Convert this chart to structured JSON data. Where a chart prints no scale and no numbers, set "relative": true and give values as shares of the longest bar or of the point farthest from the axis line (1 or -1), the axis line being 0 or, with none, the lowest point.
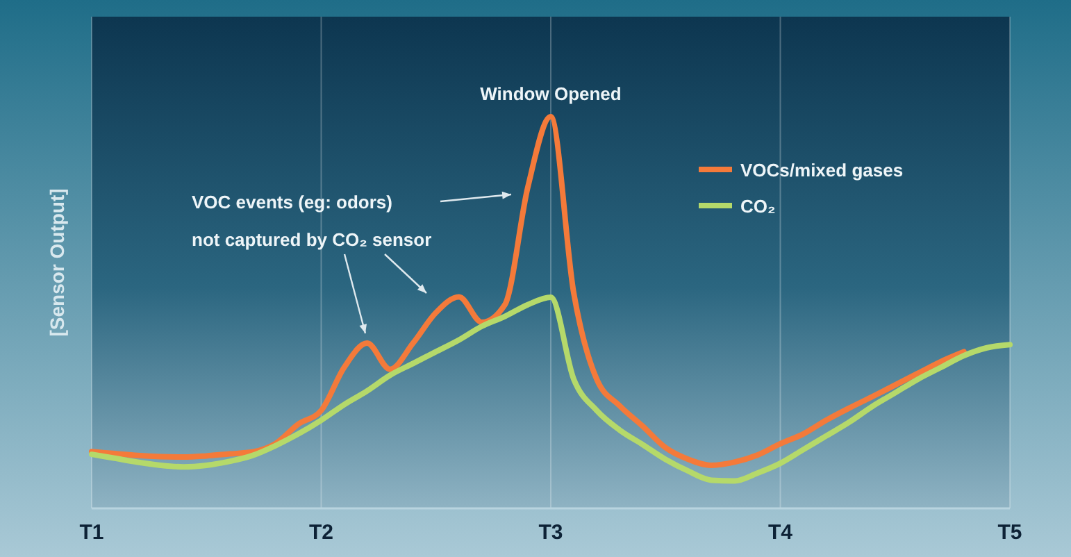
{
  "chart_data": {
    "type": "line",
    "relative": true,
    "ylabel": "[Sensor Output]",
    "categories": [
      "T1",
      null,
      null,
      null,
      null,
      null,
      null,
      null,
      null,
      null,
      "T2",
      null,
      null,
      null,
      null,
      null,
      null,
      null,
      null,
      null,
      "T3",
      null,
      null,
      null,
      null,
      null,
      null,
      null,
      null,
      null,
      "T4",
      null,
      null,
      null,
      null,
      null,
      null,
      null,
      null,
      null,
      "T5"
    ],
    "grid": "x",
    "legend": "top right",
    "marker": "none",
    "line_style": "solid",
    "annotations": [
      "Window Opened",
      "VOC events (eg: odors)\nnot captured by CO₂ sensor"
    ],
    "series": [
      {
        "name": "VOCs/mixed gases",
        "color": "#f47a3a",
        "values": [
          0.145,
          0.14,
          0.135,
          0.132,
          0.131,
          0.134,
          0.139,
          0.144,
          0.165,
          0.215,
          0.25,
          0.36,
          0.422,
          0.355,
          0.422,
          0.5,
          0.54,
          0.475,
          0.52,
          0.82,
          1,
          0.55,
          0.33,
          0.262,
          0.21,
          0.155,
          0.125,
          0.11,
          0.118,
          0.136,
          0.165,
          0.19,
          0.225,
          0.256,
          0.285,
          0.315,
          0.345,
          0.375,
          0.4,
          null,
          null
        ]
      },
      {
        "name": "CO₂",
        "color": "#b5d96a",
        "values": [
          0.138,
          0.128,
          0.118,
          0.11,
          0.106,
          0.11,
          0.12,
          0.135,
          0.16,
          0.19,
          0.225,
          0.265,
          0.3,
          0.34,
          0.37,
          0.4,
          0.43,
          0.465,
          0.49,
          0.52,
          0.539,
          0.33,
          0.25,
          0.2,
          0.163,
          0.125,
          0.095,
          0.072,
          0.07,
          0.09,
          0.115,
          0.15,
          0.185,
          0.22,
          0.26,
          0.295,
          0.33,
          0.36,
          0.39,
          0.41,
          0.418
        ]
      }
    ]
  }
}
